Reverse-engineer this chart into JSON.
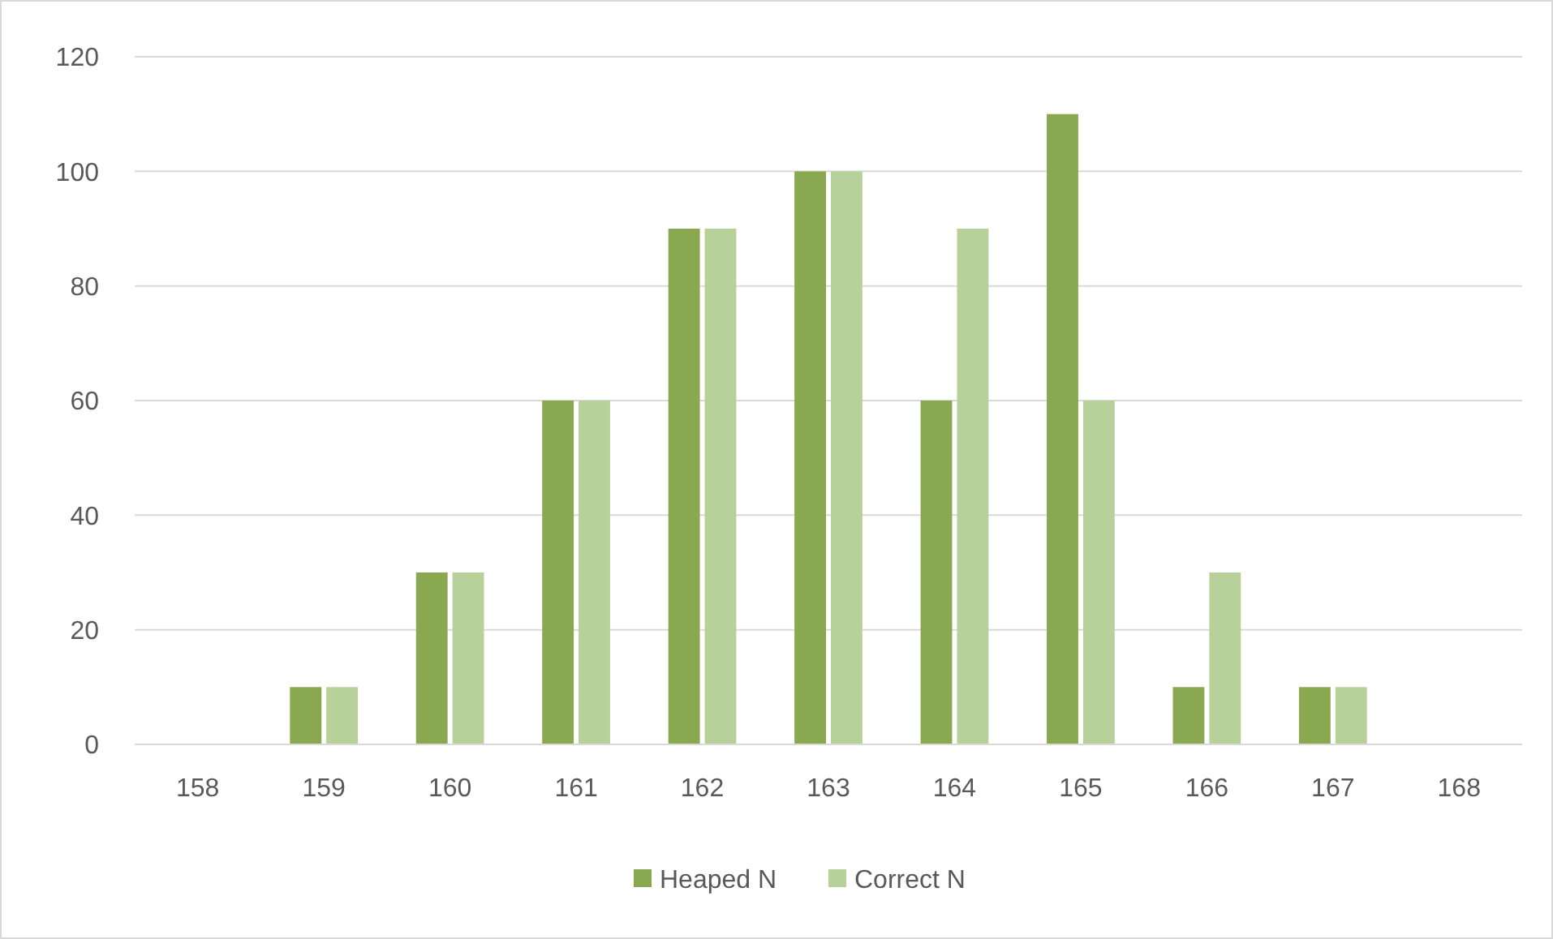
{
  "chart_data": {
    "type": "bar",
    "categories": [
      "158",
      "159",
      "160",
      "161",
      "162",
      "163",
      "164",
      "165",
      "166",
      "167",
      "168"
    ],
    "series": [
      {
        "name": "Heaped N",
        "color": "#8aa84f",
        "values": [
          0,
          10,
          30,
          60,
          90,
          100,
          60,
          110,
          10,
          10,
          0
        ]
      },
      {
        "name": "Correct N",
        "color": "#b8d09a",
        "values": [
          0,
          10,
          30,
          60,
          90,
          100,
          90,
          60,
          30,
          10,
          0
        ]
      }
    ],
    "ylim": [
      0,
      120
    ],
    "yticks": [
      0,
      20,
      40,
      60,
      80,
      100,
      120
    ],
    "grid": "y",
    "legend": "bottom"
  }
}
